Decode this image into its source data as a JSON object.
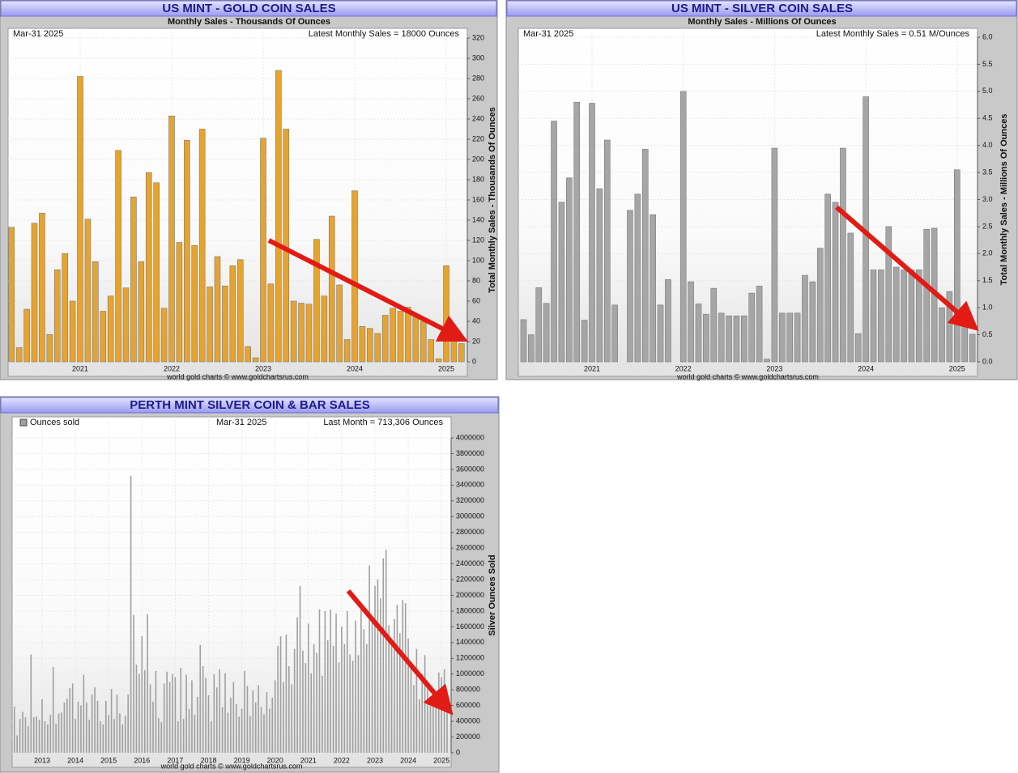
{
  "charts": [
    {
      "type": "bar",
      "title": "US MINT - GOLD COIN SALES",
      "subtitle": "Monthly Sales - Thousands Of Ounces",
      "date": "Mar-31  2025",
      "note": "Latest Monthly Sales = 18000 Ounces",
      "ylabel": "Total Monthly Sales - Thousands Of Ounces",
      "credit": "world gold charts © www.goldchartsrus.com",
      "color": "#e6a42e",
      "grid": true,
      "xticks": [
        "2021",
        "2022",
        "2023",
        "2024",
        "2025"
      ],
      "ylim": [
        0,
        320
      ],
      "yticks": [
        0,
        20,
        40,
        60,
        80,
        100,
        120,
        140,
        160,
        180,
        200,
        220,
        240,
        260,
        280,
        300,
        320
      ],
      "values": [
        133,
        14,
        52,
        137,
        147,
        27,
        91,
        107,
        60,
        282,
        141,
        99,
        50,
        65,
        209,
        73,
        163,
        99,
        187,
        177,
        53,
        243,
        118,
        219,
        115,
        230,
        74,
        104,
        75,
        95,
        101,
        15,
        4,
        221,
        77,
        288,
        230,
        60,
        58,
        57,
        121,
        65,
        144,
        76,
        22,
        169,
        35,
        33,
        28,
        46,
        53,
        50,
        54,
        47,
        40,
        22,
        3,
        95,
        22,
        18
      ]
    },
    {
      "type": "bar",
      "title": "US MINT - SILVER COIN SALES",
      "subtitle": "Monthly Sales - Millions Of Ounces",
      "date": "Mar-31  2025",
      "note": "Latest Monthly Sales = 0.51 M/Ounces",
      "ylabel": "Total Monthly Sales - Millions Of Ounces",
      "credit": "world gold charts © www.goldchartsrus.com",
      "color": "#a6a6a6",
      "grid": true,
      "xticks": [
        "2021",
        "2022",
        "2023",
        "2024",
        "2025"
      ],
      "ylim": [
        0,
        6
      ],
      "yticks": [
        {
          "value": 0,
          "label": "0.0"
        },
        0.5,
        {
          "value": 1,
          "label": "1.0"
        },
        1.5,
        {
          "value": 2,
          "label": "2.0"
        },
        2.5,
        {
          "value": 3,
          "label": "3.0"
        },
        3.5,
        {
          "value": 4,
          "label": "4.0"
        },
        4.5,
        {
          "value": 5,
          "label": "5.0"
        },
        5.5,
        {
          "value": 6,
          "label": "6.0"
        }
      ],
      "values": [
        0.78,
        0.5,
        1.37,
        1.08,
        4.45,
        2.95,
        3.4,
        4.8,
        0.77,
        4.78,
        3.2,
        4.1,
        1.05,
        null,
        2.8,
        3.1,
        3.93,
        2.72,
        1.05,
        1.52,
        null,
        5.0,
        1.48,
        1.07,
        0.88,
        1.36,
        0.9,
        0.85,
        0.85,
        0.85,
        1.27,
        1.4,
        0.05,
        3.95,
        0.9,
        0.9,
        0.9,
        1.6,
        1.48,
        2.1,
        3.1,
        2.95,
        3.95,
        2.38,
        0.52,
        4.9,
        1.7,
        1.7,
        2.5,
        1.75,
        1.7,
        1.7,
        1.7,
        2.45,
        2.47,
        1.0,
        1.3,
        3.55,
        0.8,
        0.51
      ]
    },
    {
      "type": "bar",
      "title": "PERTH MINT SILVER COIN & BAR SALES",
      "date": "Mar-31  2025",
      "note": "Last Month = 713,306 Ounces",
      "ylabel": "Silver Ounces Sold",
      "credit": "world gold charts © www.goldchartsrus.com",
      "grid": true,
      "xticks": [
        "2013",
        "2014",
        "2015",
        "2016",
        "2017",
        "2018",
        "2019",
        "2020",
        "2021",
        "2022",
        "2023",
        "2024",
        "2025"
      ],
      "ylim": [
        0,
        4000000
      ],
      "yticks": [
        0,
        200000,
        400000,
        600000,
        800000,
        1000000,
        1200000,
        1400000,
        1600000,
        1800000,
        2000000,
        2200000,
        2400000,
        2600000,
        2800000,
        3000000,
        3200000,
        3400000,
        3600000,
        3800000,
        4000000
      ],
      "series": [
        {
          "name": "Ounces sold",
          "color": "#a0a0a0",
          "values": [
            590000,
            220000,
            430000,
            520000,
            450000,
            340000,
            1250000,
            450000,
            460000,
            420000,
            680000,
            400000,
            360000,
            480000,
            1090000,
            370000,
            500000,
            510000,
            640000,
            690000,
            820000,
            880000,
            430000,
            650000,
            600000,
            990000,
            640000,
            420000,
            740000,
            830000,
            660000,
            400000,
            360000,
            660000,
            480000,
            810000,
            430000,
            740000,
            500000,
            360000,
            470000,
            740000,
            3520000,
            1750000,
            1120000,
            1000000,
            1480000,
            1050000,
            1760000,
            870000,
            650000,
            1040000,
            440000,
            390000,
            880000,
            1030000,
            900000,
            1000000,
            960000,
            400000,
            1080000,
            430000,
            990000,
            560000,
            920000,
            480000,
            710000,
            1370000,
            1100000,
            950000,
            730000,
            400000,
            1000000,
            830000,
            1060000,
            580000,
            1010000,
            510000,
            700000,
            900000,
            620000,
            460000,
            560000,
            1040000,
            850000,
            470000,
            790000,
            640000,
            860000,
            580000,
            490000,
            770000,
            560000,
            700000,
            920000,
            1360000,
            1480000,
            900000,
            1500000,
            1100000,
            870000,
            1320000,
            1720000,
            2120000,
            1300000,
            1140000,
            1640000,
            1010000,
            1380000,
            1270000,
            1820000,
            980000,
            1800000,
            1430000,
            1820000,
            1360000,
            1770000,
            1150000,
            1600000,
            1380000,
            1800000,
            1250000,
            1170000,
            1680000,
            1240000,
            1880000,
            1570000,
            1380000,
            2380000,
            1700000,
            2120000,
            2200000,
            1960000,
            2470000,
            2580000,
            1620000,
            1400000,
            1700000,
            1880000,
            1520000,
            1940000,
            1900000,
            1450000,
            1110000,
            860000,
            1320000,
            680000,
            1000000,
            1240000,
            820000,
            640000,
            760000,
            580000,
            1020000,
            960000,
            1060000,
            713306
          ]
        }
      ]
    }
  ]
}
